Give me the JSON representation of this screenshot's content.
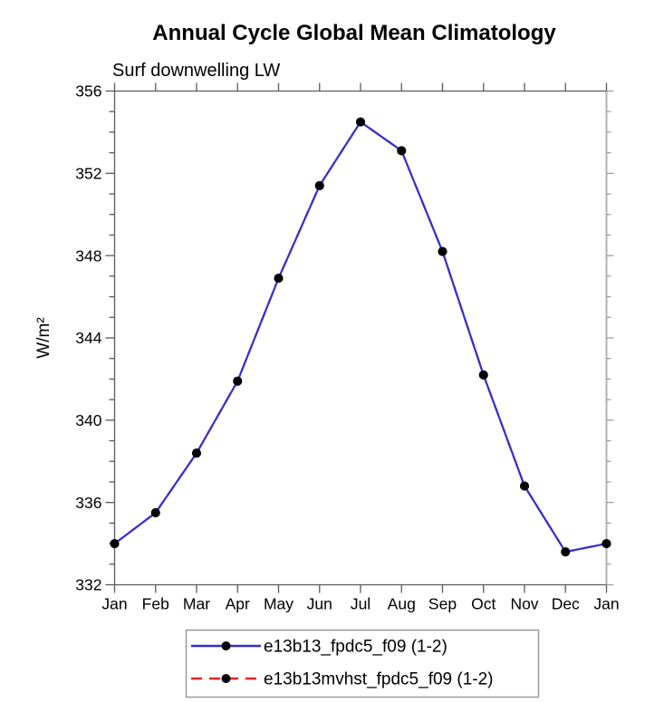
{
  "chart_data": {
    "type": "line",
    "title": "Annual Cycle Global Mean Climatology",
    "subtitle": "Surf downwelling LW",
    "ylabel": "W/m²",
    "xlabel": "",
    "x_categories": [
      "Jan",
      "Feb",
      "Mar",
      "Apr",
      "May",
      "Jun",
      "Jul",
      "Aug",
      "Sep",
      "Oct",
      "Nov",
      "Dec",
      "Jan"
    ],
    "y_axis": {
      "min": 332,
      "max": 356,
      "major_step": 4,
      "minor_step": 1,
      "major_tick_labels": [
        "332",
        "336",
        "340",
        "344",
        "348",
        "352",
        "356"
      ]
    },
    "grid": false,
    "legend_position": "bottom-center",
    "marker": {
      "shape": "filled-circle",
      "color": "#000000"
    },
    "series": [
      {
        "name": "e13b13_fpdc5_f09 (1-2)",
        "color": "#3030d4",
        "style": "solid",
        "values": [
          334.0,
          335.5,
          338.4,
          341.9,
          346.9,
          351.4,
          354.5,
          353.1,
          348.2,
          342.2,
          336.8,
          333.6,
          334.0
        ]
      },
      {
        "name": "e13b13mvhst_fpdc5_f09 (1-2)",
        "color": "#ee2222",
        "style": "dashed",
        "values": [
          334.0,
          335.5,
          338.4,
          341.9,
          346.9,
          351.4,
          354.5,
          353.1,
          348.2,
          342.2,
          336.8,
          333.6,
          334.0
        ]
      }
    ]
  }
}
